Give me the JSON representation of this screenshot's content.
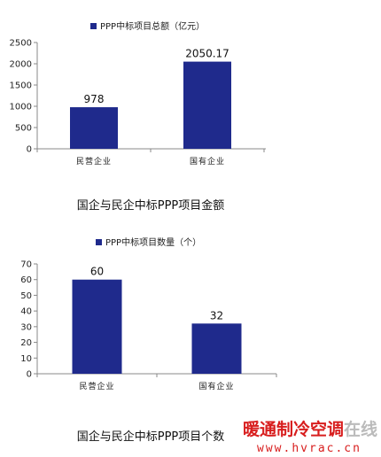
{
  "charts": [
    {
      "caption": "国企与民企中标PPP项目金额",
      "chart_data": {
        "type": "bar",
        "legend": {
          "label": "PPP中标项目总额（亿元）",
          "placement": "top"
        },
        "categories": [
          "民营企业",
          "国有企业"
        ],
        "values": [
          978,
          2050.17
        ],
        "value_labels": [
          "978",
          "2050.17"
        ],
        "yticks": [
          "0",
          "500",
          "1000",
          "1500",
          "2000",
          "2500"
        ],
        "ylim": [
          0,
          2500
        ],
        "bar_color": "#1f2a8c",
        "grid": false
      }
    },
    {
      "caption": "国企与民企中标PPP项目个数",
      "chart_data": {
        "type": "bar",
        "legend": {
          "label": "PPP中标项目数量（个）",
          "placement": "top"
        },
        "categories": [
          "民营企业",
          "国有企业"
        ],
        "values": [
          60,
          32
        ],
        "value_labels": [
          "60",
          "32"
        ],
        "yticks": [
          "0",
          "10",
          "20",
          "30",
          "40",
          "50",
          "60",
          "70"
        ],
        "ylim": [
          0,
          70
        ],
        "bar_color": "#1f2a8c",
        "grid": false
      }
    }
  ],
  "watermark": {
    "main": "暖通制冷空调",
    "tail": "在线",
    "url": "www.hvrac.cn"
  }
}
